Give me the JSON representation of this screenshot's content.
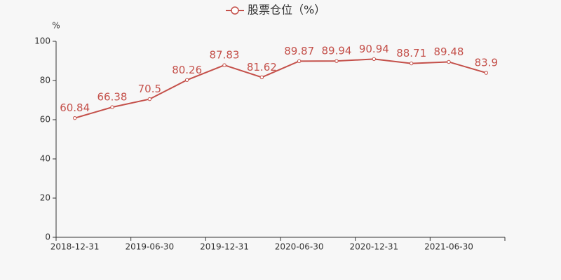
{
  "chart_data": {
    "type": "line",
    "y_label": "%",
    "categories": [
      "2018-12-31",
      null,
      "2019-06-30",
      null,
      "2019-12-31",
      null,
      "2020-06-30",
      null,
      "2020-12-31",
      null,
      "2021-06-30",
      null
    ],
    "series": [
      {
        "name": "股票仓位（%）",
        "color": "#c4504a",
        "values": [
          60.84,
          66.38,
          70.5,
          80.26,
          87.83,
          81.62,
          89.87,
          89.94,
          90.94,
          88.71,
          89.48,
          83.9
        ]
      }
    ],
    "ylim": [
      0,
      100
    ],
    "yticks": [
      0,
      20,
      40,
      60,
      80,
      100
    ],
    "grid": false
  }
}
